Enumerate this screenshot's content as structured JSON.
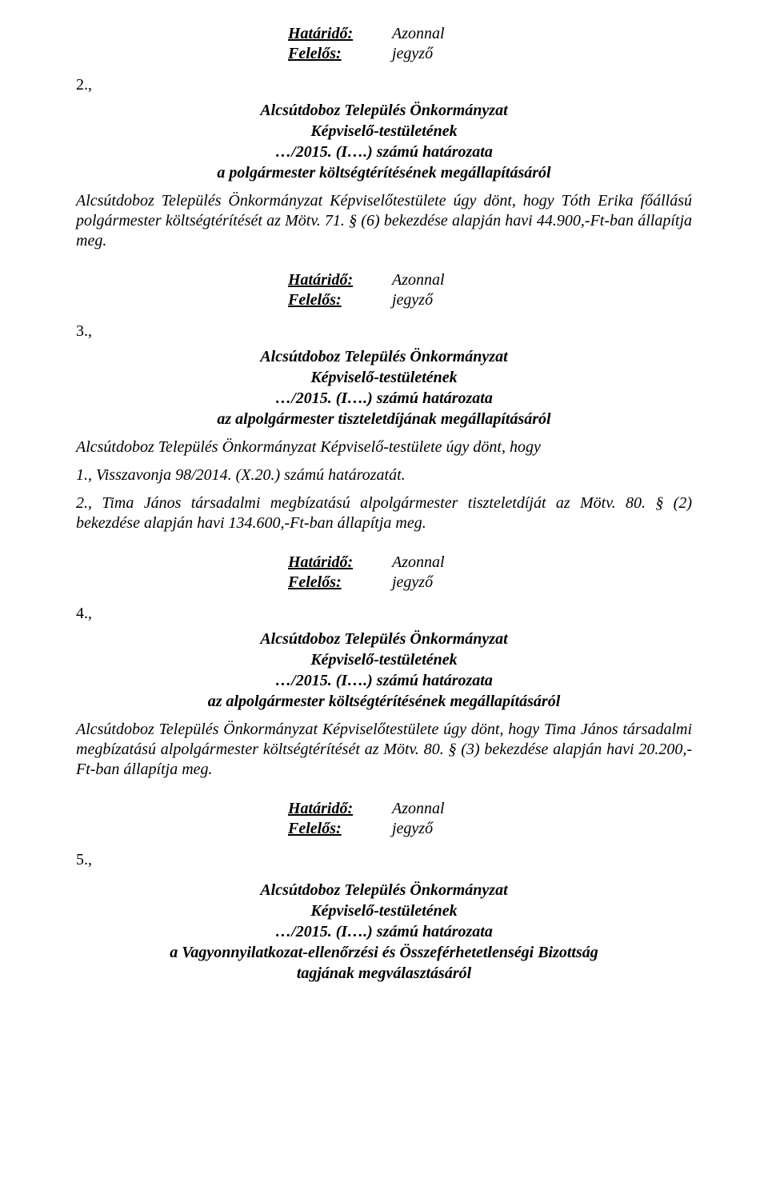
{
  "common": {
    "deadline_label": "Határidő:",
    "responsible_label": "Felelős:",
    "deadline_value": "Azonnal",
    "responsible_value": "jegyző",
    "org_name": "Alcsútdoboz Település Önkormányzat",
    "body_name": "Képviselő-testületének",
    "resolution_ref": "…/2015. (I….) számú határozata"
  },
  "sec2": {
    "num": "2.,",
    "subject": "a polgármester költségtérítésének megállapításáról",
    "body": "Alcsútdoboz Település Önkormányzat Képviselőtestülete úgy dönt, hogy Tóth Erika főállású polgármester költségtérítését az Mötv. 71. § (6) bekezdése alapján havi 44.900,-Ft-ban állapítja meg."
  },
  "sec3": {
    "num": "3.,",
    "subject": "az alpolgármester tiszteletdíjának megállapításáról",
    "lead": "Alcsútdoboz Település Önkormányzat Képviselő-testülete úgy dönt, hogy",
    "item1": "1., Visszavonja 98/2014. (X.20.) számú határozatát.",
    "item2": "2., Tima János társadalmi megbízatású alpolgármester tiszteletdíját az Mötv. 80. § (2) bekezdése alapján havi 134.600,-Ft-ban állapítja meg."
  },
  "sec4": {
    "num": "4.,",
    "subject": "az alpolgármester költségtérítésének megállapításáról",
    "body": "Alcsútdoboz Település Önkormányzat Képviselőtestülete úgy dönt, hogy Tima János társadalmi megbízatású alpolgármester költségtérítését az Mötv. 80. § (3) bekezdése alapján havi 20.200,-Ft-ban állapítja meg."
  },
  "sec5": {
    "num": "5.,",
    "subject_line1": "a Vagyonnyilatkozat-ellenőrzési és Összeférhetetlenségi Bizottság",
    "subject_line2": "tagjának megválasztásáról"
  }
}
